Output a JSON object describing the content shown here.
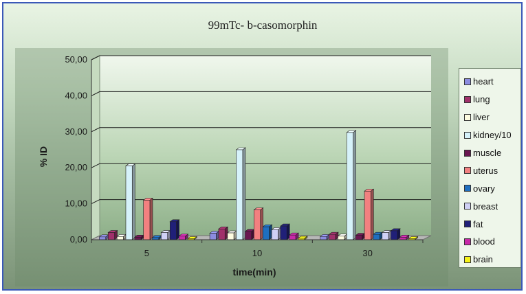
{
  "chart_data": {
    "type": "bar",
    "title": "99mTc- b-casomorphin",
    "xlabel": "time(min)",
    "ylabel": "% ID",
    "categories": [
      "5",
      "10",
      "30"
    ],
    "ylim": [
      0,
      50
    ],
    "yticks": [
      "0,00",
      "10,00",
      "20,00",
      "30,00",
      "40,00",
      "50,00"
    ],
    "grid": true,
    "legend_position": "right",
    "series": [
      {
        "name": "heart",
        "color": "#8c8ce0",
        "values": [
          0.8,
          1.8,
          0.9
        ]
      },
      {
        "name": "lung",
        "color": "#a0306a",
        "values": [
          2.0,
          3.0,
          1.5
        ]
      },
      {
        "name": "liver",
        "color": "#fdfce0",
        "values": [
          0.9,
          1.9,
          1.0
        ]
      },
      {
        "name": "kidney/10",
        "color": "#d6f2fa",
        "values": [
          20.5,
          25.0,
          29.8
        ]
      },
      {
        "name": "muscle",
        "color": "#6a1650",
        "values": [
          0.7,
          2.3,
          1.2
        ]
      },
      {
        "name": "uterus",
        "color": "#f28080",
        "values": [
          11.0,
          8.3,
          13.5
        ]
      },
      {
        "name": "ovary",
        "color": "#1f6fc0",
        "values": [
          0.6,
          3.6,
          1.5
        ]
      },
      {
        "name": "breast",
        "color": "#cfd0f5",
        "values": [
          2.0,
          2.8,
          2.0
        ]
      },
      {
        "name": "fat",
        "color": "#202078",
        "values": [
          5.0,
          3.8,
          2.5
        ]
      },
      {
        "name": "blood",
        "color": "#c82aa8",
        "values": [
          1.0,
          1.3,
          0.7
        ]
      },
      {
        "name": "brain",
        "color": "#f5f218",
        "values": [
          0.3,
          0.4,
          0.3
        ]
      }
    ]
  }
}
